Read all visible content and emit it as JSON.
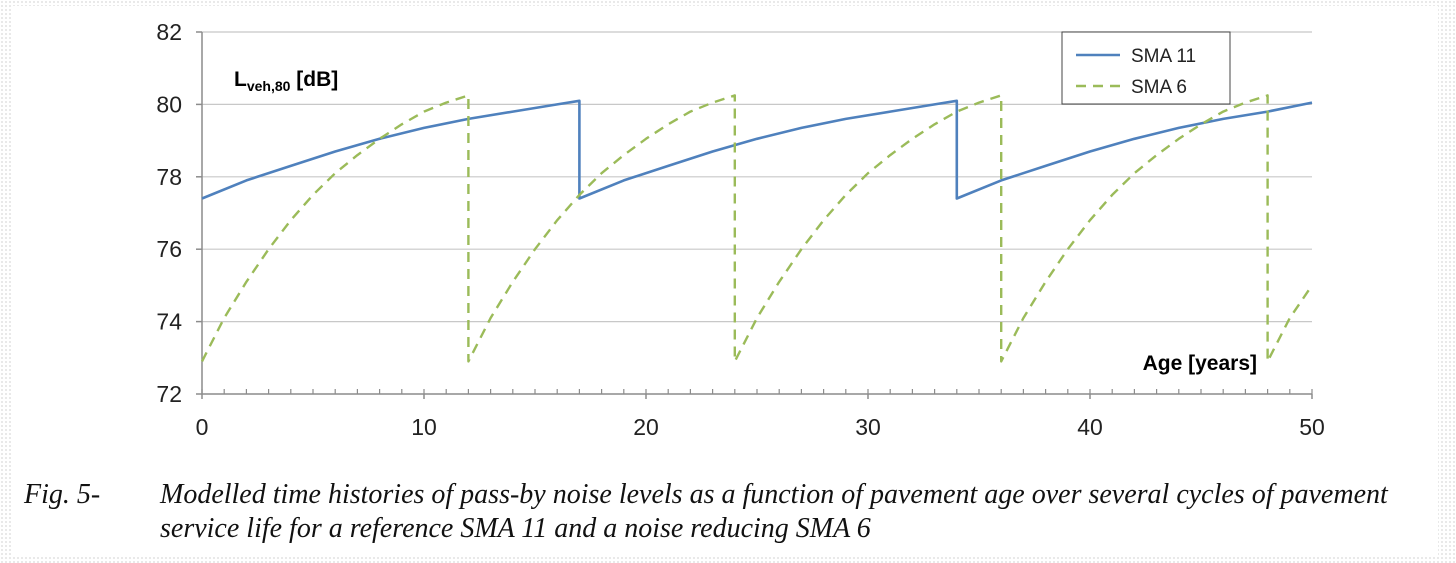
{
  "chart_data": {
    "type": "line",
    "ylabel_main": "L",
    "ylabel_sub": "veh,80",
    "ylabel_unit": " [dB]",
    "xlabel": "Age [years]",
    "xlim": [
      0,
      50
    ],
    "ylim": [
      72,
      82
    ],
    "xticks": [
      0,
      10,
      20,
      30,
      40,
      50
    ],
    "yticks": [
      72,
      74,
      76,
      78,
      80,
      82
    ],
    "x_minor_step": 1,
    "grid": "horizontal",
    "legend_position": "top-right",
    "series": [
      {
        "name": "SMA 11",
        "color": "#4f81bd",
        "style": "solid",
        "points": [
          [
            0,
            77.4
          ],
          [
            2,
            77.9
          ],
          [
            4,
            78.3
          ],
          [
            6,
            78.7
          ],
          [
            8,
            79.05
          ],
          [
            10,
            79.35
          ],
          [
            12,
            79.6
          ],
          [
            14,
            79.8
          ],
          [
            16,
            80.0
          ],
          [
            17,
            80.1
          ],
          [
            17,
            77.4
          ],
          [
            19,
            77.9
          ],
          [
            21,
            78.3
          ],
          [
            23,
            78.7
          ],
          [
            25,
            79.05
          ],
          [
            27,
            79.35
          ],
          [
            29,
            79.6
          ],
          [
            31,
            79.8
          ],
          [
            33,
            80.0
          ],
          [
            34,
            80.1
          ],
          [
            34,
            77.4
          ],
          [
            36,
            77.9
          ],
          [
            38,
            78.3
          ],
          [
            40,
            78.7
          ],
          [
            42,
            79.05
          ],
          [
            44,
            79.35
          ],
          [
            46,
            79.6
          ],
          [
            48,
            79.8
          ],
          [
            50,
            80.05
          ]
        ]
      },
      {
        "name": "SMA 6",
        "color": "#9bbb59",
        "style": "dashed",
        "points": [
          [
            0,
            72.9
          ],
          [
            1,
            74.1
          ],
          [
            2,
            75.1
          ],
          [
            3,
            76.0
          ],
          [
            4,
            76.8
          ],
          [
            5,
            77.5
          ],
          [
            6,
            78.1
          ],
          [
            7,
            78.6
          ],
          [
            8,
            79.05
          ],
          [
            9,
            79.45
          ],
          [
            10,
            79.8
          ],
          [
            11,
            80.05
          ],
          [
            12,
            80.25
          ],
          [
            12,
            72.9
          ],
          [
            13,
            74.1
          ],
          [
            14,
            75.1
          ],
          [
            15,
            76.0
          ],
          [
            16,
            76.8
          ],
          [
            17,
            77.5
          ],
          [
            18,
            78.1
          ],
          [
            19,
            78.6
          ],
          [
            20,
            79.05
          ],
          [
            21,
            79.45
          ],
          [
            22,
            79.8
          ],
          [
            23,
            80.05
          ],
          [
            24,
            80.25
          ],
          [
            24,
            72.9
          ],
          [
            25,
            74.1
          ],
          [
            26,
            75.1
          ],
          [
            27,
            76.0
          ],
          [
            28,
            76.8
          ],
          [
            29,
            77.5
          ],
          [
            30,
            78.1
          ],
          [
            31,
            78.6
          ],
          [
            32,
            79.05
          ],
          [
            33,
            79.45
          ],
          [
            34,
            79.8
          ],
          [
            35,
            80.05
          ],
          [
            36,
            80.25
          ],
          [
            36,
            72.9
          ],
          [
            37,
            74.1
          ],
          [
            38,
            75.1
          ],
          [
            39,
            76.0
          ],
          [
            40,
            76.8
          ],
          [
            41,
            77.5
          ],
          [
            42,
            78.1
          ],
          [
            43,
            78.6
          ],
          [
            44,
            79.05
          ],
          [
            45,
            79.45
          ],
          [
            46,
            79.8
          ],
          [
            47,
            80.05
          ],
          [
            48,
            80.25
          ],
          [
            48,
            72.9
          ],
          [
            49,
            74.1
          ],
          [
            50,
            75.0
          ]
        ]
      }
    ]
  },
  "caption": {
    "label": "Fig. 5-",
    "text": "Modelled time histories of pass-by noise levels as a function of pavement age over several cycles of pavement service life for a reference SMA 11 and a noise reducing SMA 6"
  }
}
